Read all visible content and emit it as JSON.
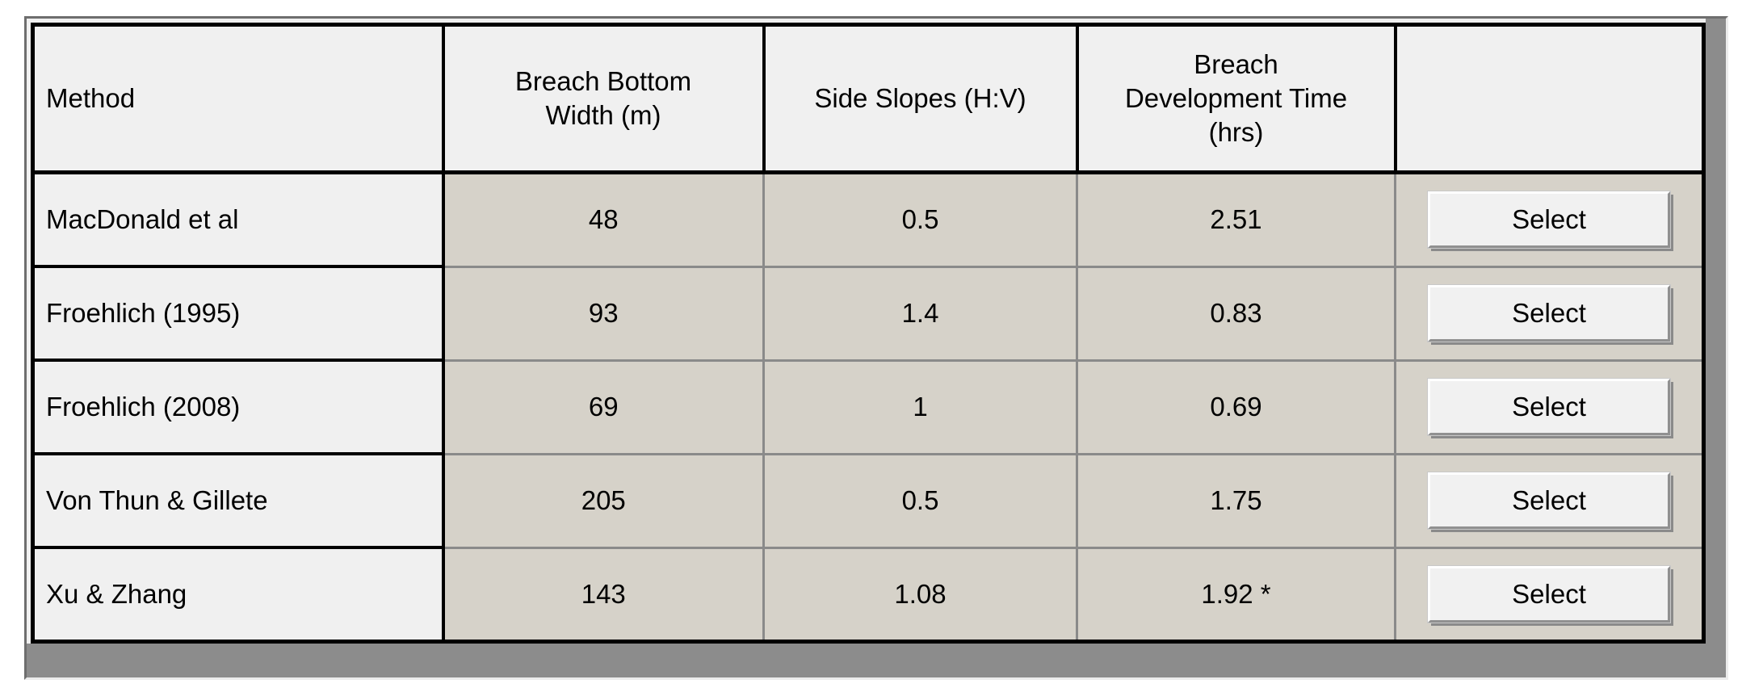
{
  "colors": {
    "header_and_method_bg": "#f0f0f0",
    "data_cell_bg": "#d6d2c9",
    "grid_black": "#000000",
    "grid_gray": "#8a8a8a",
    "panel_gray": "#8c8c8c",
    "button_face": "#f1f1f1"
  },
  "table": {
    "columns": [
      {
        "id": "method",
        "lines": [
          "Method"
        ]
      },
      {
        "id": "breach_bottom_width",
        "lines": [
          "Breach Bottom",
          "Width (m)"
        ]
      },
      {
        "id": "side_slopes",
        "lines": [
          "Side Slopes (H:V)"
        ]
      },
      {
        "id": "breach_development_time",
        "lines": [
          "Breach",
          "Development Time",
          "(hrs)"
        ]
      },
      {
        "id": "action",
        "lines": []
      }
    ],
    "rows": [
      {
        "method": "MacDonald et al",
        "breach_bottom_width": "48",
        "side_slopes": "0.5",
        "breach_development_time": "2.51",
        "action": "Select"
      },
      {
        "method": "Froehlich (1995)",
        "breach_bottom_width": "93",
        "side_slopes": "1.4",
        "breach_development_time": "0.83",
        "action": "Select"
      },
      {
        "method": "Froehlich (2008)",
        "breach_bottom_width": "69",
        "side_slopes": "1",
        "breach_development_time": "0.69",
        "action": "Select"
      },
      {
        "method": "Von Thun & Gillete",
        "breach_bottom_width": "205",
        "side_slopes": "0.5",
        "breach_development_time": "1.75",
        "action": "Select"
      },
      {
        "method": "Xu & Zhang",
        "breach_bottom_width": "143",
        "side_slopes": "1.08",
        "breach_development_time": "1.92 *",
        "action": "Select"
      }
    ]
  }
}
